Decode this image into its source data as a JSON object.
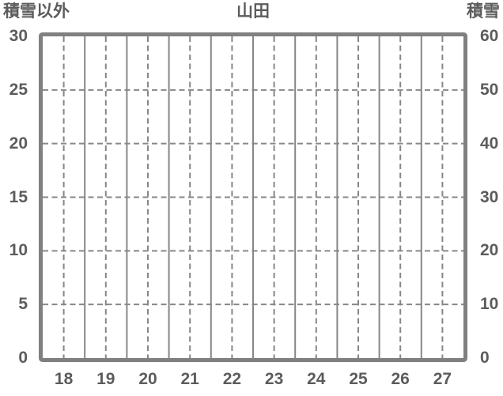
{
  "chart_data": {
    "type": "line",
    "title": "山田",
    "categories": [
      "18",
      "19",
      "20",
      "21",
      "22",
      "23",
      "24",
      "25",
      "26",
      "27"
    ],
    "series": [],
    "left_axis": {
      "label": "積雪以外",
      "min": 0,
      "max": 30,
      "step": 5,
      "ticks_top_to_bottom": [
        "30",
        "25",
        "20",
        "15",
        "10",
        "5",
        "0"
      ]
    },
    "right_axis": {
      "label": "積雪",
      "min": 0,
      "max": 60,
      "step": 10,
      "ticks_top_to_bottom": [
        "60",
        "50",
        "40",
        "30",
        "20",
        "10",
        "0"
      ]
    },
    "legend": "none",
    "grid": {
      "vertical_solid_lines": "category boundaries",
      "vertical_dashed_lines": "category centers",
      "horizontal_dashed_lines": "interior y ticks"
    },
    "colors": {
      "background": "#ffffff",
      "border": "#808080",
      "gridline": "#878787",
      "text": "#5c5c5c"
    }
  }
}
